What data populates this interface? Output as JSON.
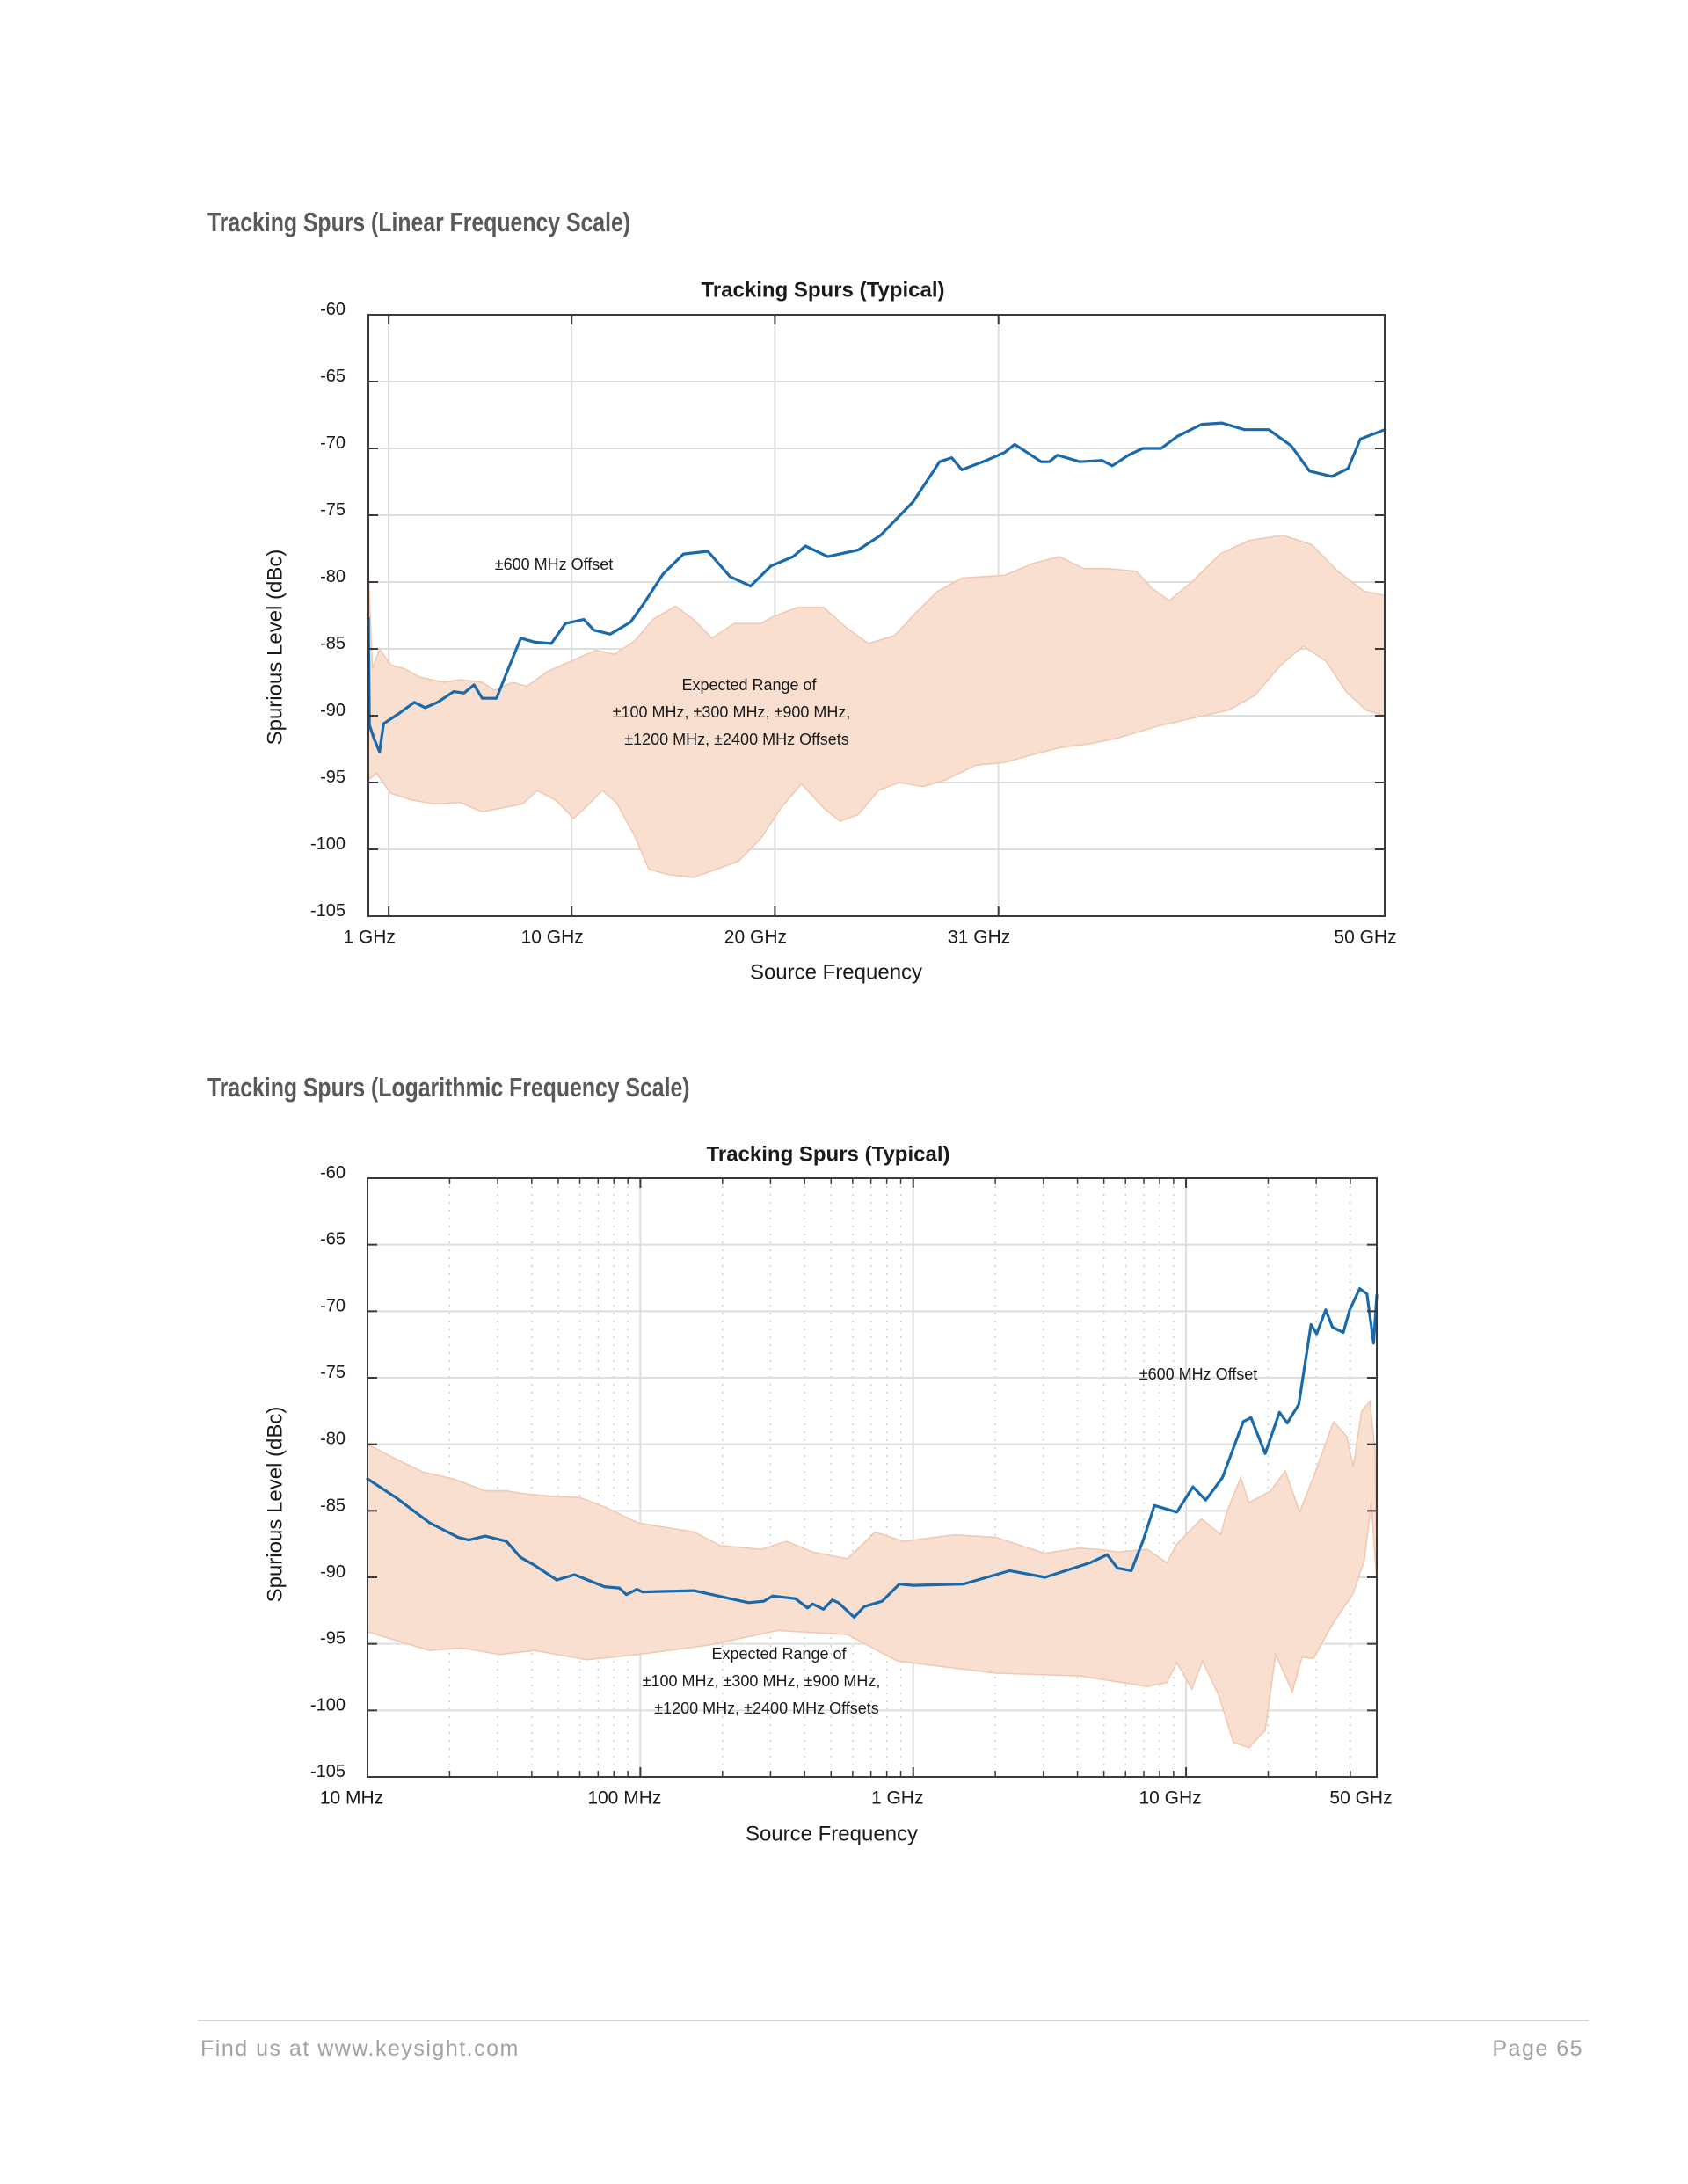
{
  "page": {
    "headings": {
      "linear": "Tracking Spurs (Linear Frequency Scale)",
      "log": "Tracking Spurs (Logarithmic Frequency Scale)"
    }
  },
  "footer": {
    "left": "Find us at www.keysight.com",
    "right": "Page 65",
    "rule_color": "#d3d3d3"
  },
  "colors": {
    "line": "#1a6aab",
    "band_fill": "#f9ddce",
    "band_edge": "#f1c7b1",
    "grid": "#dedede",
    "axis": "#3a3a3a",
    "heading": "#595959"
  },
  "chart_data": [
    {
      "type": "line+band",
      "title": "Tracking Spurs (Typical)",
      "xlabel": "Source Frequency",
      "ylabel": "Spurious Level (dBc)",
      "xscale": "linear",
      "xunit": "GHz",
      "xlim": [
        0,
        50
      ],
      "ylim": [
        -105,
        -60
      ],
      "grid": true,
      "xticks": [
        1,
        10,
        20,
        31,
        50
      ],
      "xtick_labels": [
        "1 GHz",
        "10 GHz",
        "20 GHz",
        "31 GHz",
        "50 GHz"
      ],
      "yticks": [
        -60,
        -65,
        -70,
        -75,
        -80,
        -85,
        -90,
        -95,
        -100,
        -105
      ],
      "ytick_labels": [
        "-60",
        "-65",
        "-70",
        "-75",
        "-80",
        "-85",
        "-90",
        "-95",
        "-100",
        "-105"
      ],
      "series": [
        {
          "name": "±600 MHz Offset",
          "kind": "line",
          "x": [
            0,
            0.05,
            0.3,
            0.55,
            0.75,
            1.44,
            2.26,
            2.8,
            3.4,
            4.2,
            4.7,
            5.2,
            5.6,
            6.3,
            6.8,
            7.5,
            8.2,
            9.0,
            9.7,
            10.6,
            11.1,
            11.9,
            12.9,
            13.6,
            14.5,
            15.5,
            16.7,
            17.8,
            18.8,
            19.8,
            20.9,
            21.5,
            22.6,
            24.1,
            25.2,
            26.8,
            28.1,
            28.7,
            29.2,
            30.4,
            31.3,
            31.8,
            32.4,
            33.1,
            33.5,
            33.9,
            35.0,
            36.1,
            36.6,
            37.4,
            38.1,
            39.0,
            39.8,
            41.0,
            42.0,
            43.1,
            44.3,
            45.4,
            46.3,
            47.4,
            48.2,
            48.8,
            50
          ],
          "y": [
            -82.7,
            -90.7,
            -91.8,
            -92.7,
            -90.6,
            -89.9,
            -89.0,
            -89.4,
            -89.0,
            -88.2,
            -88.3,
            -87.7,
            -88.7,
            -88.7,
            -86.8,
            -84.2,
            -84.5,
            -84.6,
            -83.1,
            -82.8,
            -83.6,
            -83.9,
            -83.0,
            -81.5,
            -79.4,
            -77.9,
            -77.7,
            -79.6,
            -80.3,
            -78.8,
            -78.1,
            -77.3,
            -78.1,
            -77.6,
            -76.5,
            -74.0,
            -71.0,
            -70.7,
            -71.6,
            -70.9,
            -70.3,
            -69.7,
            -70.3,
            -71.0,
            -71.0,
            -70.5,
            -71.0,
            -70.9,
            -71.3,
            -70.5,
            -70.0,
            -70.0,
            -69.1,
            -68.2,
            -68.1,
            -68.6,
            -68.6,
            -69.8,
            -71.7,
            -72.1,
            -71.5,
            -69.3,
            -68.6
          ]
        },
        {
          "label_lines": [
            "Expected Range of",
            "±100 MHz, ±300 MHz, ±900 MHz,",
            "±1200 MHz, ±2400 MHz Offsets"
          ],
          "kind": "band",
          "upper_x": [
            0,
            0.2,
            0.55,
            1.1,
            1.8,
            2.5,
            3.7,
            4.5,
            5.6,
            6.2,
            7.1,
            7.8,
            8.8,
            9.7,
            11.2,
            12.1,
            13.1,
            14.0,
            15.1,
            16.0,
            16.9,
            18.0,
            19.3,
            19.9,
            21.1,
            22.4,
            23.5,
            24.6,
            25.9,
            26.8,
            28.0,
            29.2,
            31.3,
            32.7,
            34.0,
            35.2,
            36.4,
            37.8,
            38.5,
            39.4,
            40.5,
            41.9,
            43.3,
            45.0,
            46.4,
            47.7,
            49.0,
            50
          ],
          "upper_y": [
            -79.0,
            -86.5,
            -85.0,
            -86.2,
            -86.5,
            -87.1,
            -87.5,
            -87.3,
            -87.5,
            -88.1,
            -87.5,
            -87.8,
            -86.7,
            -86.1,
            -85.1,
            -85.4,
            -84.4,
            -82.8,
            -81.8,
            -82.8,
            -84.2,
            -83.1,
            -83.1,
            -82.6,
            -81.9,
            -81.9,
            -83.4,
            -84.6,
            -84.0,
            -82.5,
            -80.7,
            -79.7,
            -79.5,
            -78.6,
            -78.1,
            -79.0,
            -79.0,
            -79.2,
            -80.4,
            -81.4,
            -80.0,
            -77.9,
            -76.9,
            -76.5,
            -77.2,
            -79.2,
            -80.7,
            -81.0
          ],
          "lower_x": [
            0,
            0.4,
            1.1,
            2.1,
            3.2,
            4.5,
            5.6,
            6.6,
            7.6,
            8.3,
            9.2,
            10.1,
            10.8,
            11.5,
            12.2,
            13.1,
            13.8,
            14.8,
            16.0,
            17.1,
            18.2,
            19.3,
            20.3,
            21.3,
            22.4,
            23.2,
            24.1,
            25.1,
            26.1,
            27.3,
            28.4,
            29.9,
            31.3,
            32.7,
            34.0,
            35.5,
            36.8,
            38.8,
            40.5,
            42.3,
            43.6,
            44.9,
            46.0,
            47.1,
            48.1,
            49.1,
            50
          ],
          "lower_y": [
            -94.8,
            -94.3,
            -95.8,
            -96.3,
            -96.6,
            -96.5,
            -97.2,
            -96.9,
            -96.6,
            -95.6,
            -96.3,
            -97.7,
            -96.7,
            -95.6,
            -96.5,
            -99.0,
            -101.5,
            -101.9,
            -102.1,
            -101.5,
            -100.9,
            -99.2,
            -96.9,
            -95.1,
            -96.9,
            -97.9,
            -97.4,
            -95.6,
            -95.0,
            -95.3,
            -94.8,
            -93.7,
            -93.5,
            -92.9,
            -92.4,
            -92.1,
            -91.7,
            -90.8,
            -90.2,
            -89.6,
            -88.5,
            -86.2,
            -84.8,
            -85.9,
            -88.2,
            -89.6,
            -90.0
          ]
        }
      ]
    },
    {
      "type": "line+band",
      "title": "Tracking Spurs (Typical)",
      "xlabel": "Source Frequency",
      "ylabel": "Spurious Level (dBc)",
      "xscale": "log",
      "xunit": "MHz",
      "xlim": [
        10,
        50000
      ],
      "ylim": [
        -105,
        -60
      ],
      "grid": true,
      "grid_minor": true,
      "xticks": [
        10,
        100,
        1000,
        10000,
        50000
      ],
      "xtick_labels": [
        "10 MHz",
        "100 MHz",
        "1 GHz",
        "10 GHz",
        "50 GHz"
      ],
      "yticks": [
        -60,
        -65,
        -70,
        -75,
        -80,
        -85,
        -90,
        -95,
        -100,
        -105
      ],
      "ytick_labels": [
        "-60",
        "-65",
        "-70",
        "-75",
        "-80",
        "-85",
        "-90",
        "-95",
        "-100",
        "-105"
      ],
      "series": [
        {
          "name": "±600 MHz Offset",
          "kind": "line",
          "x": [
            10,
            12.7,
            16.9,
            21.5,
            23.5,
            27,
            32.3,
            36.4,
            41,
            49.4,
            57.4,
            73.8,
            83.7,
            88.9,
            97.2,
            101.6,
            157,
            249,
            283,
            305,
            370,
            410,
            428,
            469,
            505,
            532,
            608,
            661,
            769,
            890,
            1000,
            1530,
            2260,
            3040,
            4450,
            5140,
            5600,
            6300,
            6970,
            7660,
            9250,
            10600,
            11800,
            13600,
            16200,
            17300,
            19500,
            22000,
            23500,
            25900,
            28700,
            30100,
            32500,
            34400,
            37700,
            39800,
            43300,
            46000,
            48700,
            50000
          ],
          "y": [
            -82.6,
            -84.0,
            -85.9,
            -87.0,
            -87.2,
            -86.9,
            -87.3,
            -88.5,
            -89.1,
            -90.2,
            -89.8,
            -90.7,
            -90.8,
            -91.3,
            -90.9,
            -91.1,
            -91.0,
            -91.9,
            -91.8,
            -91.4,
            -91.6,
            -92.3,
            -92.0,
            -92.4,
            -91.7,
            -91.9,
            -93.0,
            -92.2,
            -91.8,
            -90.5,
            -90.6,
            -90.5,
            -89.5,
            -90.0,
            -88.9,
            -88.3,
            -89.3,
            -89.5,
            -87.2,
            -84.6,
            -85.1,
            -83.2,
            -84.2,
            -82.5,
            -78.3,
            -78.0,
            -80.7,
            -77.6,
            -78.4,
            -77.0,
            -71.0,
            -71.7,
            -69.9,
            -71.2,
            -71.6,
            -69.9,
            -68.3,
            -68.7,
            -72.4,
            -68.8
          ]
        },
        {
          "label_lines": [
            "Expected Range of",
            "±100 MHz, ±300 MHz, ±900 MHz,",
            "±1200 MHz, ±2400 MHz Offsets"
          ],
          "kind": "band",
          "upper_x": [
            10,
            12.7,
            16,
            20.6,
            27,
            32.3,
            37,
            47,
            60,
            73.8,
            98,
            157,
            196,
            277,
            343,
            428,
            574,
            725,
            920,
            1420,
            2010,
            3040,
            4050,
            4800,
            5640,
            7200,
            8500,
            9250,
            11400,
            13400,
            14100,
            15850,
            17000,
            20400,
            23100,
            26100,
            29500,
            34700,
            38800,
            41000,
            44000,
            47200,
            49300,
            50000
          ],
          "upper_y": [
            -80.0,
            -81.1,
            -82.1,
            -82.6,
            -83.5,
            -83.5,
            -83.7,
            -83.9,
            -84.0,
            -84.7,
            -85.9,
            -86.6,
            -87.6,
            -87.9,
            -87.3,
            -88.1,
            -88.6,
            -86.6,
            -87.3,
            -86.8,
            -87.0,
            -88.2,
            -87.8,
            -87.9,
            -88.1,
            -87.9,
            -88.9,
            -87.5,
            -85.6,
            -86.8,
            -85.1,
            -82.5,
            -84.4,
            -83.5,
            -82.0,
            -85.1,
            -82.3,
            -78.3,
            -79.4,
            -81.7,
            -77.5,
            -76.8,
            -80.5,
            -90.4
          ],
          "lower_x": [
            10,
            16.9,
            22.1,
            30.5,
            41,
            63.6,
            98.2,
            177,
            318,
            574,
            875,
            2010,
            4050,
            7200,
            8500,
            9250,
            10500,
            11500,
            13200,
            14900,
            17000,
            19500,
            21300,
            24500,
            26600,
            29300,
            34700,
            41000,
            45000,
            47700,
            50000
          ],
          "lower_y": [
            -94.1,
            -95.5,
            -95.3,
            -95.8,
            -95.5,
            -96.2,
            -95.8,
            -95.1,
            -94.0,
            -94.3,
            -96.3,
            -97.2,
            -97.4,
            -98.2,
            -97.9,
            -96.4,
            -98.4,
            -96.3,
            -98.9,
            -102.4,
            -102.8,
            -101.5,
            -95.8,
            -98.6,
            -96.0,
            -96.1,
            -93.4,
            -91.2,
            -88.7,
            -84.4,
            -90.4
          ]
        }
      ]
    }
  ]
}
